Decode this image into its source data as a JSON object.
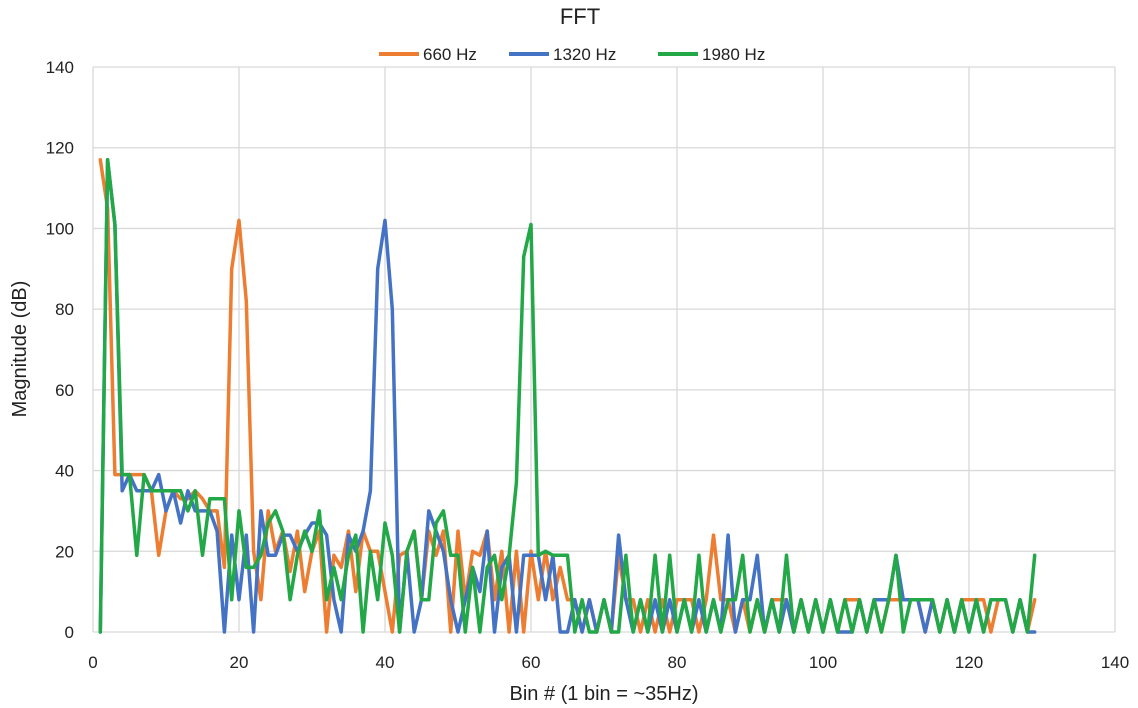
{
  "chart_data": {
    "type": "line",
    "title": "FFT",
    "xlabel": "Bin # (1 bin = ~35Hz)",
    "ylabel": "Magnitude (dB)",
    "xlim": [
      0,
      140
    ],
    "ylim": [
      0,
      140
    ],
    "xticks": [
      0,
      20,
      40,
      60,
      80,
      100,
      120,
      140
    ],
    "yticks": [
      0,
      20,
      40,
      60,
      80,
      100,
      120,
      140
    ],
    "grid": true,
    "legend_position": "top-center",
    "series": [
      {
        "name": "660 Hz",
        "color": "#ED7D31",
        "x": [
          1,
          2,
          3,
          4,
          5,
          6,
          7,
          8,
          9,
          10,
          11,
          12,
          13,
          14,
          15,
          16,
          17,
          18,
          19,
          20,
          21,
          22,
          23,
          24,
          25,
          26,
          27,
          28,
          29,
          30,
          31,
          32,
          33,
          34,
          35,
          36,
          37,
          38,
          39,
          40,
          41,
          42,
          43,
          44,
          45,
          46,
          47,
          48,
          49,
          50,
          51,
          52,
          53,
          54,
          55,
          56,
          57,
          58,
          59,
          60,
          61,
          62,
          63,
          64,
          65,
          66,
          67,
          68,
          69,
          70,
          71,
          72,
          73,
          74,
          75,
          76,
          77,
          78,
          79,
          80,
          81,
          82,
          83,
          84,
          85,
          86,
          87,
          88,
          89,
          90,
          91,
          92,
          93,
          94,
          95,
          96,
          97,
          98,
          99,
          100,
          101,
          102,
          103,
          104,
          105,
          106,
          107,
          108,
          109,
          110,
          111,
          112,
          113,
          114,
          115,
          116,
          117,
          118,
          119,
          120,
          121,
          122,
          123,
          124,
          125,
          126,
          127,
          128,
          129
        ],
        "values": [
          117,
          105,
          39,
          39,
          39,
          39,
          39,
          35,
          19,
          30,
          35,
          33,
          33,
          35,
          33,
          30,
          30,
          16,
          90,
          102,
          82,
          20,
          8,
          30,
          20,
          25,
          15,
          25,
          10,
          20,
          25,
          0,
          19,
          16,
          25,
          10,
          25,
          20,
          20,
          10,
          0,
          19,
          20,
          25,
          8,
          25,
          19,
          25,
          0,
          25,
          8,
          20,
          19,
          25,
          8,
          20,
          0,
          20,
          0,
          20,
          8,
          20,
          8,
          16,
          8,
          8,
          0,
          8,
          0,
          8,
          0,
          19,
          8,
          8,
          0,
          8,
          0,
          8,
          0,
          8,
          8,
          8,
          0,
          8,
          24,
          8,
          8,
          0,
          8,
          0,
          8,
          0,
          8,
          8,
          8,
          0,
          8,
          0,
          8,
          0,
          8,
          0,
          8,
          8,
          8,
          0,
          8,
          0,
          8,
          8,
          8,
          8,
          8,
          0,
          8,
          0,
          8,
          0,
          8,
          8,
          8,
          8,
          0,
          8,
          8,
          0,
          8,
          0,
          8
        ]
      },
      {
        "name": "1320 Hz",
        "color": "#4472C4",
        "x": [
          1,
          2,
          3,
          4,
          5,
          6,
          7,
          8,
          9,
          10,
          11,
          12,
          13,
          14,
          15,
          16,
          17,
          18,
          19,
          20,
          21,
          22,
          23,
          24,
          25,
          26,
          27,
          28,
          29,
          30,
          31,
          32,
          33,
          34,
          35,
          36,
          37,
          38,
          39,
          40,
          41,
          42,
          43,
          44,
          45,
          46,
          47,
          48,
          49,
          50,
          51,
          52,
          53,
          54,
          55,
          56,
          57,
          58,
          59,
          60,
          61,
          62,
          63,
          64,
          65,
          66,
          67,
          68,
          69,
          70,
          71,
          72,
          73,
          74,
          75,
          76,
          77,
          78,
          79,
          80,
          81,
          82,
          83,
          84,
          85,
          86,
          87,
          88,
          89,
          90,
          91,
          92,
          93,
          94,
          95,
          96,
          97,
          98,
          99,
          100,
          101,
          102,
          103,
          104,
          105,
          106,
          107,
          108,
          109,
          110,
          111,
          112,
          113,
          114,
          115,
          116,
          117,
          118,
          119,
          120,
          121,
          122,
          123,
          124,
          125,
          126,
          127,
          128,
          129
        ],
        "values": [
          0,
          117,
          101,
          35,
          39,
          35,
          35,
          35,
          39,
          30,
          35,
          27,
          35,
          30,
          30,
          30,
          25,
          0,
          24,
          8,
          24,
          0,
          30,
          19,
          19,
          24,
          24,
          20,
          24,
          27,
          27,
          24,
          8,
          0,
          24,
          20,
          25,
          35,
          90,
          102,
          80,
          0,
          20,
          0,
          8,
          30,
          25,
          20,
          8,
          0,
          8,
          16,
          10,
          25,
          0,
          16,
          19,
          0,
          19,
          19,
          19,
          8,
          19,
          0,
          0,
          8,
          0,
          8,
          0,
          8,
          0,
          24,
          8,
          0,
          8,
          0,
          8,
          0,
          8,
          0,
          8,
          0,
          8,
          0,
          8,
          0,
          24,
          0,
          8,
          8,
          19,
          0,
          8,
          0,
          8,
          0,
          8,
          0,
          8,
          0,
          8,
          0,
          0,
          0,
          8,
          0,
          8,
          8,
          8,
          19,
          8,
          8,
          8,
          0,
          8,
          0,
          8,
          0,
          8,
          0,
          8,
          0,
          8,
          8,
          8,
          0,
          8,
          0,
          0
        ]
      },
      {
        "name": "1980 Hz",
        "color": "#22A847",
        "x": [
          1,
          2,
          3,
          4,
          5,
          6,
          7,
          8,
          9,
          10,
          11,
          12,
          13,
          14,
          15,
          16,
          17,
          18,
          19,
          20,
          21,
          22,
          23,
          24,
          25,
          26,
          27,
          28,
          29,
          30,
          31,
          32,
          33,
          34,
          35,
          36,
          37,
          38,
          39,
          40,
          41,
          42,
          43,
          44,
          45,
          46,
          47,
          48,
          49,
          50,
          51,
          52,
          53,
          54,
          55,
          56,
          57,
          58,
          59,
          60,
          61,
          62,
          63,
          64,
          65,
          66,
          67,
          68,
          69,
          70,
          71,
          72,
          73,
          74,
          75,
          76,
          77,
          78,
          79,
          80,
          81,
          82,
          83,
          84,
          85,
          86,
          87,
          88,
          89,
          90,
          91,
          92,
          93,
          94,
          95,
          96,
          97,
          98,
          99,
          100,
          101,
          102,
          103,
          104,
          105,
          106,
          107,
          108,
          109,
          110,
          111,
          112,
          113,
          114,
          115,
          116,
          117,
          118,
          119,
          120,
          121,
          122,
          123,
          124,
          125,
          126,
          127,
          128,
          129
        ],
        "values": [
          0,
          117,
          101,
          39,
          39,
          19,
          39,
          35,
          35,
          35,
          35,
          35,
          30,
          35,
          19,
          33,
          33,
          33,
          8,
          30,
          16,
          16,
          19,
          27,
          30,
          25,
          8,
          19,
          25,
          20,
          30,
          8,
          16,
          8,
          19,
          24,
          0,
          20,
          8,
          27,
          19,
          0,
          20,
          25,
          8,
          8,
          27,
          30,
          19,
          19,
          0,
          16,
          0,
          16,
          19,
          8,
          19,
          37,
          93,
          101,
          19,
          20,
          19,
          19,
          19,
          0,
          8,
          0,
          0,
          8,
          0,
          0,
          19,
          0,
          8,
          0,
          19,
          0,
          19,
          0,
          8,
          0,
          19,
          0,
          8,
          0,
          8,
          8,
          19,
          0,
          8,
          0,
          8,
          0,
          19,
          0,
          8,
          0,
          8,
          0,
          8,
          0,
          8,
          0,
          8,
          0,
          8,
          0,
          8,
          19,
          0,
          8,
          8,
          8,
          8,
          0,
          8,
          0,
          8,
          0,
          8,
          0,
          8,
          8,
          8,
          0,
          8,
          0,
          19
        ]
      }
    ]
  }
}
